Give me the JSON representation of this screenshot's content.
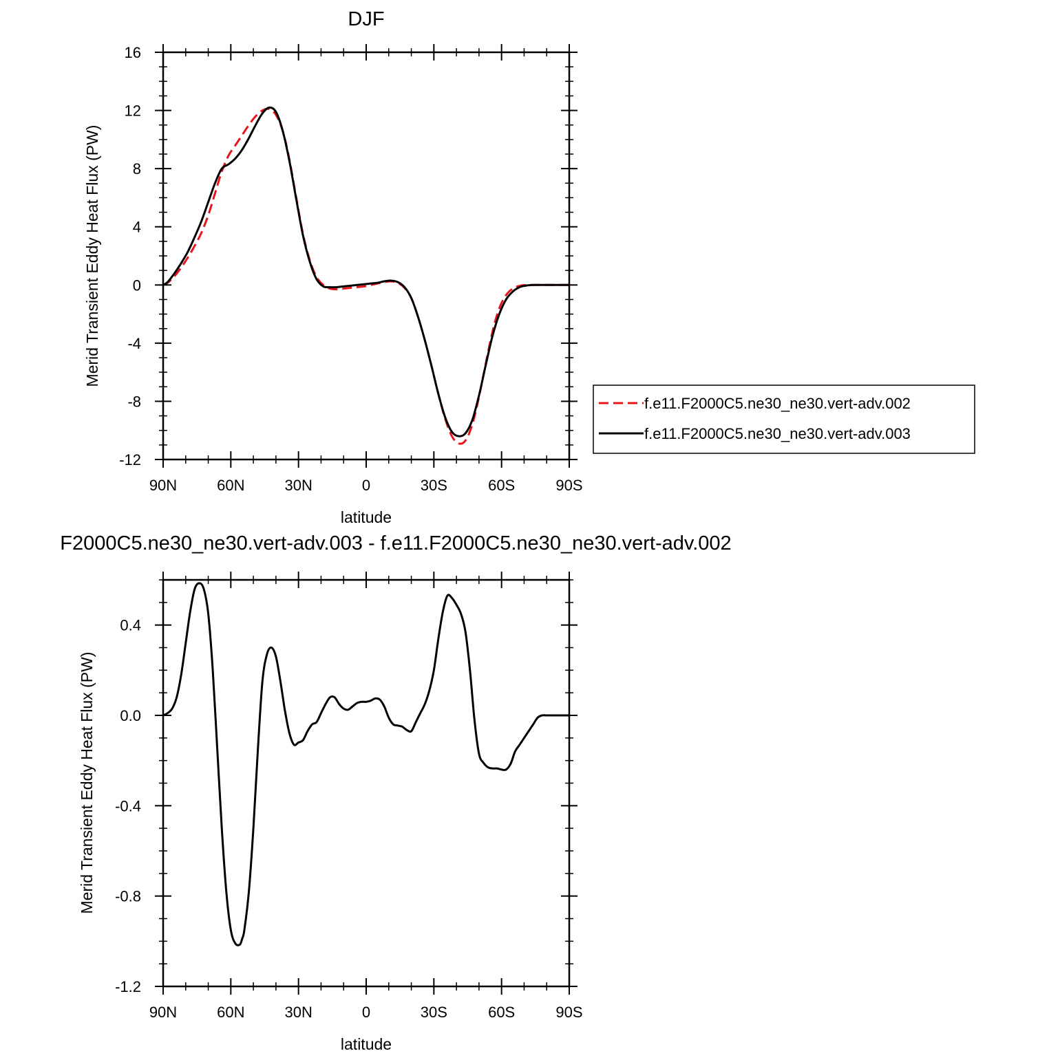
{
  "chart_data": [
    {
      "type": "line",
      "title": "DJF",
      "xlabel": "latitude",
      "ylabel": "Merid Transient Eddy Heat Flux (PW)",
      "xlim": [
        90,
        -90
      ],
      "ylim": [
        -12,
        16
      ],
      "xticks": [
        {
          "value": 90,
          "label": "90N"
        },
        {
          "value": 60,
          "label": "60N"
        },
        {
          "value": 30,
          "label": "30N"
        },
        {
          "value": 0,
          "label": "0"
        },
        {
          "value": -30,
          "label": "30S"
        },
        {
          "value": -60,
          "label": "60S"
        },
        {
          "value": -90,
          "label": "90S"
        }
      ],
      "yticks": [
        {
          "value": 16,
          "label": "16"
        },
        {
          "value": 12,
          "label": "12"
        },
        {
          "value": 8,
          "label": "8"
        },
        {
          "value": 4,
          "label": "4"
        },
        {
          "value": 0,
          "label": "0"
        },
        {
          "value": -4,
          "label": "-4"
        },
        {
          "value": -8,
          "label": "-8"
        },
        {
          "value": -12,
          "label": "-12"
        }
      ],
      "grid": false,
      "legend_position": "outside-right",
      "series": [
        {
          "name": "f.e11.F2000C5.ne30_ne30.vert-adv.002",
          "color": "#e8141c",
          "dash": "dashed",
          "x": [
            90,
            88,
            85,
            82,
            79,
            76,
            73,
            70,
            67,
            64,
            61,
            58,
            55,
            52,
            49,
            46,
            43,
            40,
            37,
            34,
            31,
            28,
            25,
            22,
            19,
            16,
            13,
            10,
            7,
            4,
            1,
            -2,
            -5,
            -8,
            -11,
            -14,
            -17,
            -20,
            -23,
            -26,
            -29,
            -32,
            -35,
            -38,
            -41,
            -44,
            -47,
            -50,
            -53,
            -56,
            -59,
            -62,
            -65,
            -68,
            -71,
            -74,
            -77,
            -80,
            -83,
            -86,
            -90
          ],
          "y": [
            0,
            0.15,
            0.6,
            1.2,
            1.9,
            2.7,
            3.6,
            4.8,
            6.3,
            7.8,
            8.9,
            9.6,
            10.3,
            11.0,
            11.6,
            12.0,
            12.1,
            11.7,
            10.6,
            8.6,
            6.0,
            3.5,
            1.7,
            0.55,
            0,
            -0.25,
            -0.3,
            -0.25,
            -0.2,
            -0.15,
            -0.1,
            0,
            0.1,
            0.2,
            0.25,
            0.15,
            -0.2,
            -0.9,
            -2.2,
            -3.8,
            -5.6,
            -7.5,
            -9.2,
            -10.4,
            -10.9,
            -10.7,
            -9.6,
            -7.7,
            -5.4,
            -3.2,
            -1.6,
            -0.7,
            -0.25,
            -0.06,
            0,
            0,
            0,
            0,
            0,
            0,
            0
          ]
        },
        {
          "name": "f.e11.F2000C5.ne30_ne30.vert-adv.003",
          "color": "#000000",
          "dash": "solid",
          "x": [
            90,
            88,
            85,
            82,
            79,
            76,
            73,
            70,
            67,
            64,
            61,
            58,
            55,
            52,
            49,
            46,
            43,
            40,
            37,
            34,
            31,
            28,
            25,
            22,
            19,
            16,
            13,
            10,
            7,
            4,
            1,
            -2,
            -5,
            -8,
            -11,
            -14,
            -17,
            -20,
            -23,
            -26,
            -29,
            -32,
            -35,
            -38,
            -41,
            -44,
            -47,
            -50,
            -53,
            -56,
            -59,
            -62,
            -65,
            -68,
            -71,
            -74,
            -77,
            -80,
            -83,
            -86,
            -90
          ],
          "y": [
            0,
            0.2,
            0.8,
            1.5,
            2.3,
            3.3,
            4.4,
            5.7,
            7.0,
            8.0,
            8.3,
            8.7,
            9.3,
            10.1,
            11.0,
            11.8,
            12.2,
            11.9,
            10.6,
            8.5,
            5.9,
            3.4,
            1.6,
            0.4,
            -0.1,
            -0.15,
            -0.15,
            -0.1,
            -0.05,
            0,
            0.05,
            0.1,
            0.15,
            0.25,
            0.3,
            0.2,
            -0.15,
            -0.9,
            -2.2,
            -3.8,
            -5.6,
            -7.5,
            -9.1,
            -10.1,
            -10.4,
            -10.2,
            -9.3,
            -7.6,
            -5.5,
            -3.5,
            -2.0,
            -1.0,
            -0.45,
            -0.15,
            -0.04,
            0,
            0,
            0,
            0,
            0,
            0
          ]
        }
      ]
    },
    {
      "type": "line",
      "title": "F2000C5.ne30_ne30.vert-adv.003 - f.e11.F2000C5.ne30_ne30.vert-adv.002",
      "xlabel": "latitude",
      "ylabel": "Merid Transient Eddy Heat Flux (PW)",
      "xlim": [
        90,
        -90
      ],
      "ylim": [
        -1.2,
        0.6
      ],
      "xticks": [
        {
          "value": 90,
          "label": "90N"
        },
        {
          "value": 60,
          "label": "60N"
        },
        {
          "value": 30,
          "label": "30N"
        },
        {
          "value": 0,
          "label": "0"
        },
        {
          "value": -30,
          "label": "30S"
        },
        {
          "value": -60,
          "label": "60S"
        },
        {
          "value": -90,
          "label": "90S"
        }
      ],
      "yticks": [
        {
          "value": 0.4,
          "label": "0.4"
        },
        {
          "value": 0.0,
          "label": "0.0"
        },
        {
          "value": -0.4,
          "label": "-0.4"
        },
        {
          "value": -0.8,
          "label": "-0.8"
        },
        {
          "value": -1.2,
          "label": "-1.2"
        }
      ],
      "grid": false,
      "series": [
        {
          "color": "#000000",
          "dash": "solid",
          "x": [
            90,
            88,
            86,
            84,
            82,
            80,
            78,
            76,
            74,
            72,
            70,
            68,
            66,
            64,
            62,
            60,
            58,
            56,
            55,
            54,
            52,
            50,
            48,
            46,
            44,
            42,
            40,
            38,
            36,
            34,
            32,
            30,
            28,
            26,
            24,
            22,
            20,
            18,
            16,
            14,
            12,
            10,
            8,
            6,
            4,
            2,
            0,
            -2,
            -4,
            -6,
            -8,
            -10,
            -12,
            -14,
            -16,
            -18,
            -20,
            -22,
            -24,
            -26,
            -28,
            -30,
            -32,
            -34,
            -36,
            -38,
            -40,
            -42,
            -44,
            -46,
            -48,
            -50,
            -52,
            -54,
            -56,
            -58,
            -60,
            -62,
            -64,
            -66,
            -68,
            -70,
            -72,
            -74,
            -76,
            -78,
            -80,
            -82,
            -84,
            -86,
            -88,
            -90
          ],
          "y": [
            0,
            0.01,
            0.03,
            0.08,
            0.18,
            0.32,
            0.46,
            0.56,
            0.585,
            0.56,
            0.45,
            0.2,
            -0.15,
            -0.5,
            -0.78,
            -0.95,
            -1.01,
            -1.015,
            -0.99,
            -0.95,
            -0.78,
            -0.5,
            -0.15,
            0.15,
            0.27,
            0.3,
            0.26,
            0.15,
            0.02,
            -0.08,
            -0.13,
            -0.12,
            -0.11,
            -0.07,
            -0.04,
            -0.03,
            0.01,
            0.05,
            0.08,
            0.08,
            0.05,
            0.03,
            0.025,
            0.04,
            0.055,
            0.06,
            0.06,
            0.065,
            0.075,
            0.07,
            0.04,
            -0.01,
            -0.04,
            -0.045,
            -0.05,
            -0.065,
            -0.07,
            -0.03,
            0.01,
            0.05,
            0.11,
            0.2,
            0.34,
            0.46,
            0.53,
            0.52,
            0.49,
            0.45,
            0.37,
            0.2,
            -0.02,
            -0.17,
            -0.21,
            -0.23,
            -0.235,
            -0.235,
            -0.24,
            -0.24,
            -0.215,
            -0.16,
            -0.13,
            -0.1,
            -0.07,
            -0.04,
            -0.01,
            0.0,
            0.0,
            0.0,
            0.0,
            0.0,
            0.0,
            0.0
          ]
        }
      ]
    }
  ]
}
